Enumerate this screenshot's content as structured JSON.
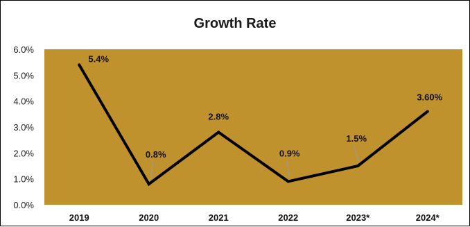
{
  "chart_data": {
    "type": "line",
    "title": "Growth Rate",
    "xlabel": "",
    "ylabel": "",
    "categories": [
      "2019",
      "2020",
      "2021",
      "2022",
      "2023*",
      "2024*"
    ],
    "series": [
      {
        "values": [
          5.4,
          0.8,
          2.8,
          0.9,
          1.5,
          3.6
        ]
      }
    ],
    "data_labels": [
      "5.4%",
      "0.8%",
      "2.8%",
      "0.9%",
      "1.5%",
      "3.60%"
    ],
    "ylim": [
      0,
      6
    ],
    "yticks": [
      "0.0%",
      "1.0%",
      "2.0%",
      "3.0%",
      "4.0%",
      "5.0%",
      "6.0%"
    ],
    "grid": false,
    "legend": "none",
    "colors": {
      "plot_area": "#C0922E",
      "line": "#000000"
    }
  }
}
